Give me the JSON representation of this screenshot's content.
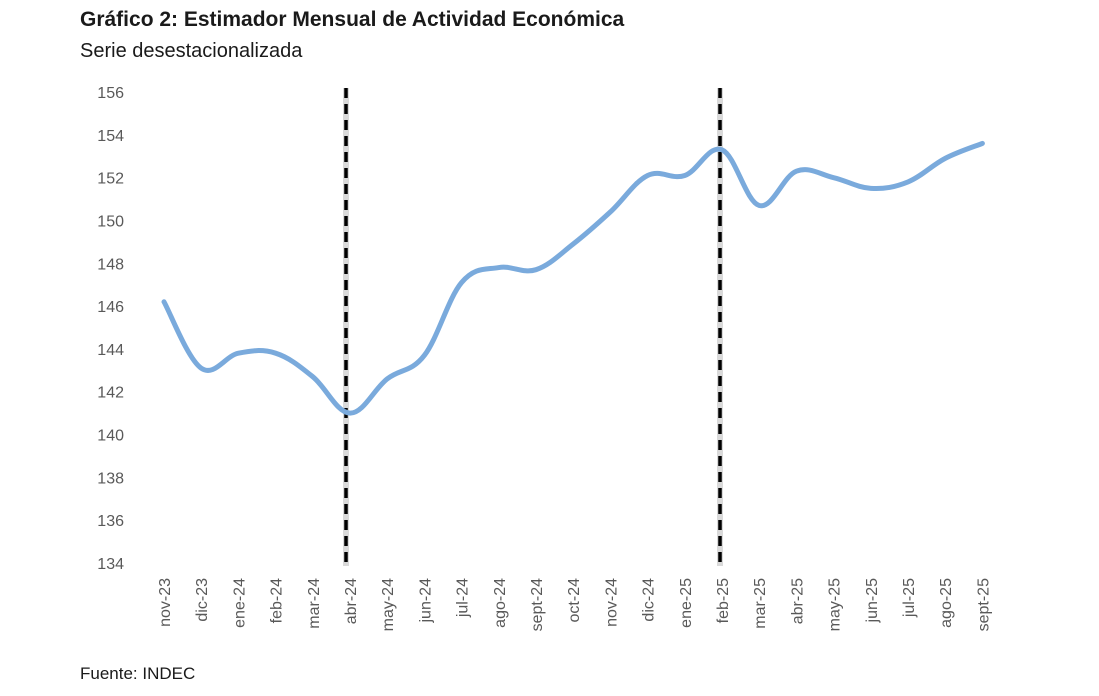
{
  "title": "Gráfico 2: Estimador Mensual de Actividad Económica",
  "subtitle": "Serie desestacionalizada",
  "source": "Fuente: INDEC",
  "chart_data": {
    "type": "line",
    "categories": [
      "nov-23",
      "dic-23",
      "ene-24",
      "feb-24",
      "mar-24",
      "abr-24",
      "may-24",
      "jun-24",
      "jul-24",
      "ago-24",
      "sept-24",
      "oct-24",
      "nov-24",
      "dic-24",
      "ene-25",
      "feb-25",
      "mar-25",
      "abr-25",
      "may-25",
      "jun-25",
      "jul-25",
      "ago-25",
      "sept-25"
    ],
    "series": [
      {
        "values": [
          146.2,
          143.1,
          143.8,
          143.8,
          142.7,
          141.0,
          142.6,
          143.7,
          147.1,
          147.8,
          147.7,
          148.9,
          150.4,
          152.1,
          152.1,
          153.3,
          150.7,
          152.3,
          152.0,
          151.5,
          151.8,
          152.9,
          153.6
        ]
      }
    ],
    "ylim": [
      134,
      156
    ],
    "yticks": [
      134,
      136,
      138,
      140,
      142,
      144,
      146,
      148,
      150,
      152,
      154,
      156
    ],
    "markers": [
      "abr-24",
      "feb-25"
    ],
    "line_color": "#7aaadc",
    "marker_color": "#000000",
    "grid": false
  }
}
